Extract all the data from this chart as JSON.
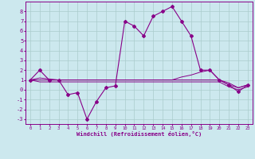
{
  "xlabel": "Windchill (Refroidissement éolien,°C)",
  "background_color": "#cce8ee",
  "grid_color": "#aacccc",
  "line_color": "#880088",
  "x_hours": [
    0,
    1,
    2,
    3,
    4,
    5,
    6,
    7,
    8,
    9,
    10,
    11,
    12,
    13,
    14,
    15,
    16,
    17,
    18,
    19,
    20,
    21,
    22,
    23
  ],
  "series1": [
    1,
    2,
    1,
    1,
    -0.5,
    -0.3,
    -3,
    -1.2,
    0.2,
    0.4,
    7,
    6.5,
    5.5,
    7.5,
    8,
    8.5,
    7,
    5.5,
    2,
    2,
    1,
    0.5,
    -0.2,
    0.5
  ],
  "series2": [
    1,
    1.2,
    1.1,
    1.0,
    1.0,
    1.0,
    1.0,
    1.0,
    1.0,
    1.0,
    1.0,
    1.0,
    1.0,
    1.0,
    1.0,
    1.0,
    1.3,
    1.5,
    1.8,
    2.0,
    1.0,
    0.7,
    0.2,
    0.5
  ],
  "series3": [
    1,
    1.0,
    1.0,
    1.0,
    1.0,
    1.0,
    1.0,
    1.0,
    1.0,
    1.0,
    1.0,
    1.0,
    1.0,
    1.0,
    1.0,
    1.0,
    1.0,
    1.0,
    1.0,
    1.0,
    1.0,
    0.5,
    0.2,
    0.5
  ],
  "series4": [
    1,
    0.8,
    0.8,
    0.8,
    0.8,
    0.8,
    0.8,
    0.8,
    0.8,
    0.8,
    0.8,
    0.8,
    0.8,
    0.8,
    0.8,
    0.8,
    0.8,
    0.8,
    0.8,
    0.8,
    0.8,
    0.3,
    0.0,
    0.3
  ],
  "ylim": [
    -3.5,
    9.0
  ],
  "yticks": [
    -3,
    -2,
    -1,
    0,
    1,
    2,
    3,
    4,
    5,
    6,
    7,
    8
  ]
}
